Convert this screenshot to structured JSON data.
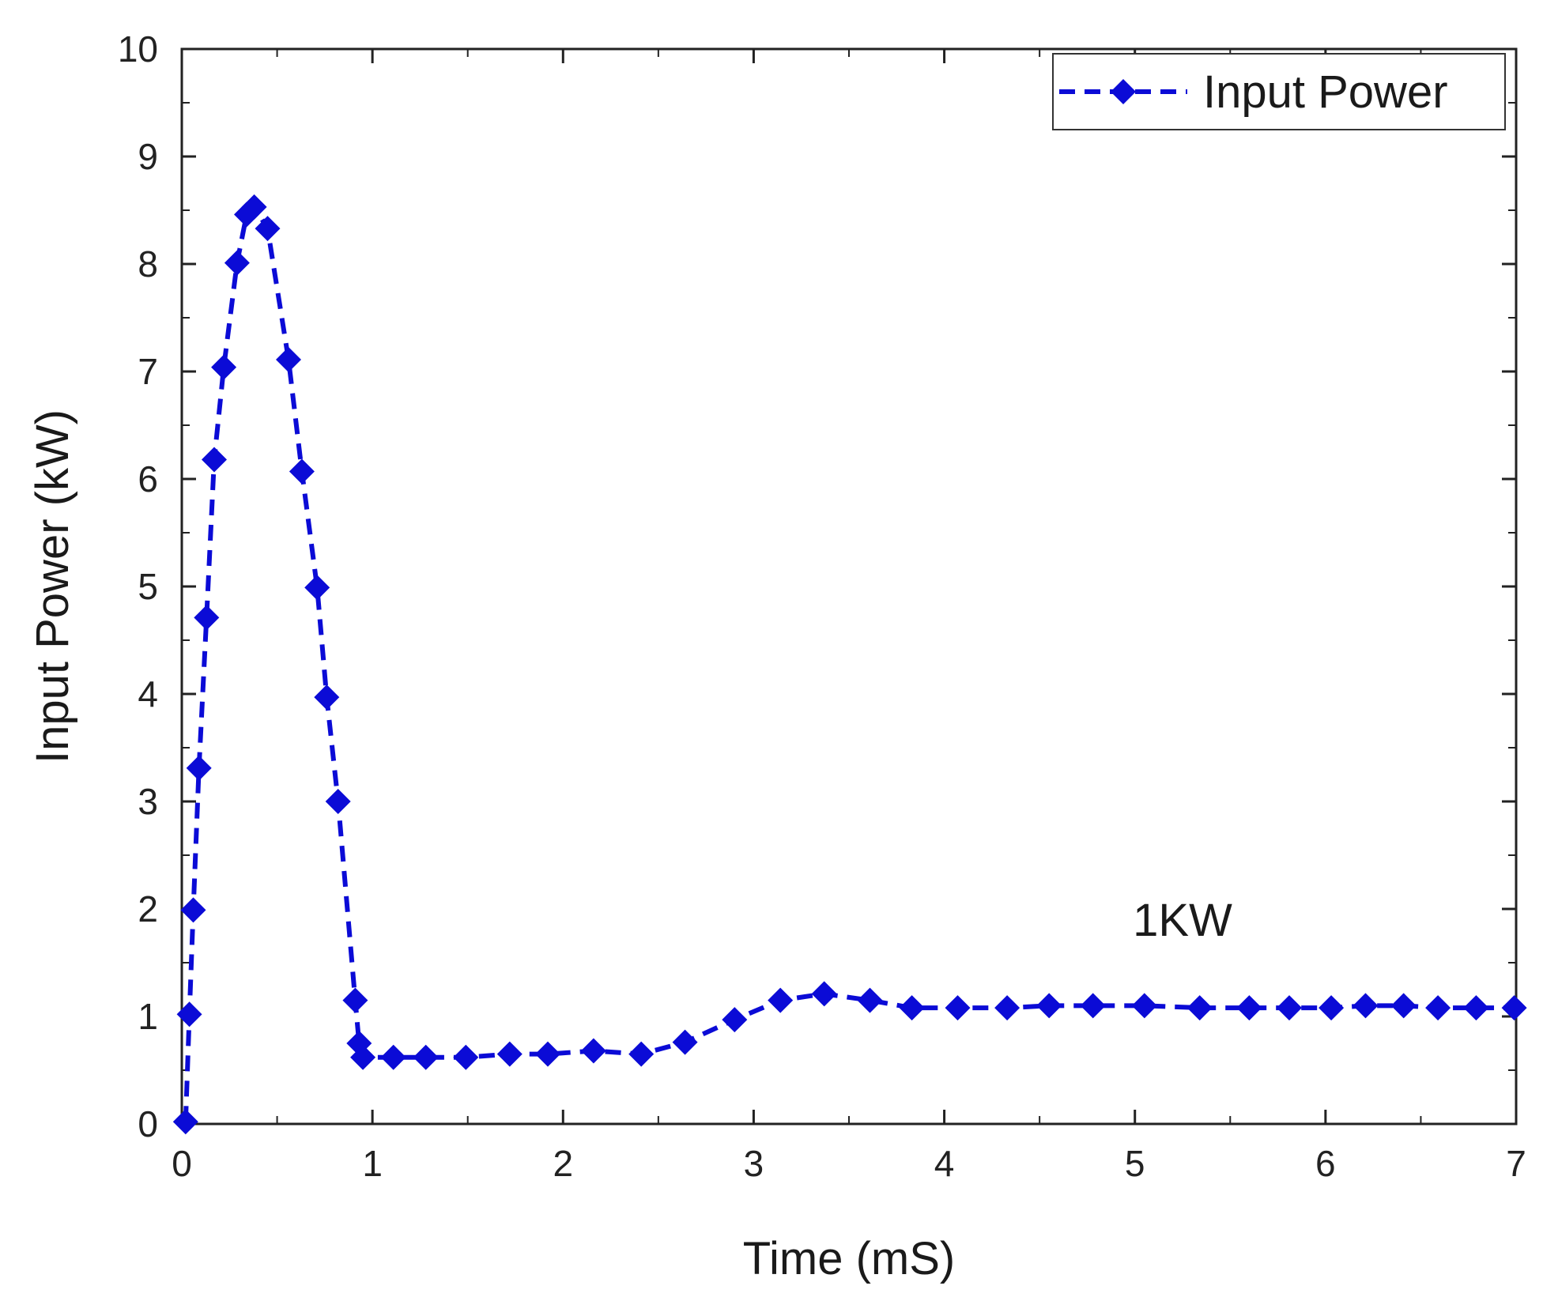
{
  "chart_data": {
    "type": "line",
    "title": "",
    "xlabel": "Time (mS)",
    "ylabel": "Input Power (kW)",
    "xlim": [
      0,
      7
    ],
    "ylim": [
      0,
      10
    ],
    "xticks": [
      0,
      1,
      2,
      3,
      4,
      5,
      6,
      7
    ],
    "yticks": [
      0,
      1,
      2,
      3,
      4,
      5,
      6,
      7,
      8,
      9,
      10
    ],
    "grid": false,
    "legend": {
      "position": "top-right",
      "entries": [
        "Input Power"
      ]
    },
    "annotations": [
      {
        "text": "1KW",
        "x": 5.25,
        "y": 1.75
      }
    ],
    "colors": {
      "series": "#0b0bd6",
      "axis": "#222222"
    },
    "series": [
      {
        "name": "Input Power",
        "style": "dashed",
        "marker": "diamond",
        "points": [
          [
            0.02,
            0.02
          ],
          [
            0.04,
            1.02
          ],
          [
            0.06,
            1.99
          ],
          [
            0.09,
            3.31
          ],
          [
            0.13,
            4.71
          ],
          [
            0.17,
            6.18
          ],
          [
            0.22,
            7.04
          ],
          [
            0.29,
            8.01
          ],
          [
            0.34,
            8.46
          ],
          [
            0.38,
            8.53
          ],
          [
            0.45,
            8.33
          ],
          [
            0.56,
            7.11
          ],
          [
            0.63,
            6.07
          ],
          [
            0.71,
            4.99
          ],
          [
            0.76,
            3.97
          ],
          [
            0.82,
            3.0
          ],
          [
            0.91,
            1.15
          ],
          [
            0.93,
            0.75
          ],
          [
            0.95,
            0.62
          ],
          [
            1.11,
            0.62
          ],
          [
            1.28,
            0.62
          ],
          [
            1.49,
            0.62
          ],
          [
            1.72,
            0.65
          ],
          [
            1.92,
            0.65
          ],
          [
            2.16,
            0.68
          ],
          [
            2.41,
            0.65
          ],
          [
            2.64,
            0.76
          ],
          [
            2.9,
            0.97
          ],
          [
            3.14,
            1.15
          ],
          [
            3.37,
            1.21
          ],
          [
            3.61,
            1.15
          ],
          [
            3.83,
            1.08
          ],
          [
            4.07,
            1.08
          ],
          [
            4.33,
            1.08
          ],
          [
            4.55,
            1.1
          ],
          [
            4.78,
            1.1
          ],
          [
            5.05,
            1.1
          ],
          [
            5.34,
            1.08
          ],
          [
            5.6,
            1.08
          ],
          [
            5.81,
            1.08
          ],
          [
            6.03,
            1.08
          ],
          [
            6.21,
            1.1
          ],
          [
            6.41,
            1.1
          ],
          [
            6.59,
            1.08
          ],
          [
            6.79,
            1.08
          ],
          [
            6.99,
            1.08
          ]
        ]
      }
    ]
  }
}
